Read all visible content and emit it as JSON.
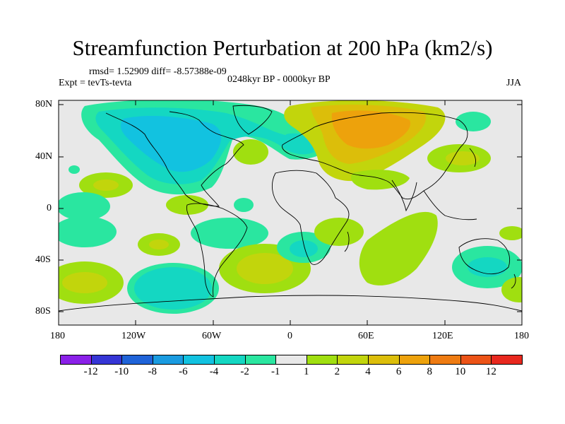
{
  "title": "Streamfunction Perturbation at 200 hPa (km2/s)",
  "stats_line": "rmsd= 1.52909 diff= -8.57388e-09",
  "experiment": "Expt = tevTs-tevta",
  "period": "0248kyr BP - 0000kyr BP",
  "season": "JJA",
  "axes": {
    "y_ticks": [
      "80N",
      "40N",
      "0",
      "40S",
      "80S"
    ],
    "x_ticks": [
      "180",
      "120W",
      "60W",
      "0",
      "60E",
      "120E",
      "180"
    ]
  },
  "colorbar": {
    "colors": [
      "#8a20e8",
      "#3535d5",
      "#1f63d8",
      "#1a9be0",
      "#12c2e0",
      "#14d7c2",
      "#2ae6a0",
      "#e8e8e8",
      "#a0df10",
      "#c2d50c",
      "#dcbe0a",
      "#eda20c",
      "#ee7b12",
      "#ec5317",
      "#e8281e"
    ],
    "labels": [
      "-12",
      "-10",
      "-8",
      "-6",
      "-4",
      "-2",
      "-1",
      "1",
      "2",
      "4",
      "6",
      "8",
      "10",
      "12"
    ]
  }
}
